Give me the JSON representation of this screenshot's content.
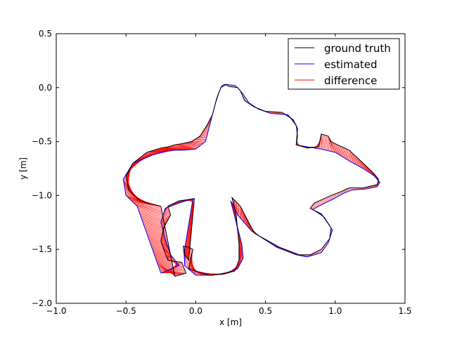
{
  "chart_data": {
    "type": "line",
    "title": "",
    "xlabel": "x [m]",
    "ylabel": "y [m]",
    "xlim": [
      -1.0,
      1.5
    ],
    "ylim": [
      -2.0,
      0.5
    ],
    "xticks": [
      -1.0,
      -0.5,
      0.0,
      0.5,
      1.0,
      1.5
    ],
    "yticks": [
      -2.0,
      -1.5,
      -1.0,
      -0.5,
      0.0,
      0.5
    ],
    "xtick_labels": [
      "−1.0",
      "−0.5",
      "0.0",
      "0.5",
      "1.0",
      "1.5"
    ],
    "ytick_labels": [
      "−2.0",
      "−1.5",
      "−1.0",
      "−0.5",
      "0.0",
      "0.5"
    ],
    "grid": false,
    "legend_position": "top-right",
    "series": [
      {
        "name": "ground truth",
        "color": "#000000",
        "x": [
          0.3,
          0.32,
          0.35,
          0.42,
          0.5,
          0.62,
          0.7,
          0.73,
          0.72,
          0.8,
          0.88,
          0.9,
          0.95,
          0.97,
          1.0,
          1.1,
          1.2,
          1.28,
          1.31,
          1.3,
          1.2,
          1.1,
          1.05,
          0.97,
          0.85,
          0.82,
          0.9,
          0.97,
          0.96,
          0.9,
          0.82,
          0.74,
          0.6,
          0.42,
          0.32,
          0.26,
          0.29,
          0.31,
          0.31,
          0.28,
          0.2,
          0.1,
          0.0,
          -0.05,
          -0.03,
          -0.02,
          -0.05,
          -0.09,
          -0.08,
          -0.05,
          -0.01,
          -0.12,
          -0.2,
          -0.18,
          -0.23,
          -0.25,
          -0.23,
          -0.2,
          -0.1,
          -0.07,
          -0.15,
          -0.25,
          -0.4,
          -0.48,
          -0.5,
          -0.45,
          -0.35,
          -0.25,
          -0.2,
          -0.15,
          -0.1,
          -0.03,
          0.03,
          0.08,
          0.1,
          0.12,
          0.13,
          0.14,
          0.16,
          0.18,
          0.19,
          0.21,
          0.24,
          0.3
        ],
        "y": [
          0.0,
          -0.03,
          -0.12,
          -0.18,
          -0.22,
          -0.23,
          -0.3,
          -0.38,
          -0.53,
          -0.56,
          -0.55,
          -0.43,
          -0.45,
          -0.5,
          -0.52,
          -0.58,
          -0.7,
          -0.8,
          -0.85,
          -0.9,
          -0.93,
          -0.93,
          -0.96,
          -1.0,
          -1.07,
          -1.12,
          -1.17,
          -1.3,
          -1.4,
          -1.5,
          -1.55,
          -1.55,
          -1.48,
          -1.35,
          -1.1,
          -1.02,
          -1.18,
          -1.45,
          -1.6,
          -1.7,
          -1.73,
          -1.74,
          -1.7,
          -1.68,
          -1.55,
          -1.5,
          -1.48,
          -1.47,
          -1.55,
          -1.6,
          -1.03,
          -1.05,
          -1.1,
          -1.18,
          -1.3,
          -1.42,
          -1.5,
          -1.6,
          -1.62,
          -1.72,
          -1.75,
          -1.1,
          -1.05,
          -0.95,
          -0.82,
          -0.7,
          -0.6,
          -0.56,
          -0.55,
          -0.53,
          -0.52,
          -0.5,
          -0.45,
          -0.35,
          -0.3,
          -0.25,
          -0.2,
          -0.15,
          -0.07,
          0.0,
          0.02,
          0.03,
          0.01,
          0.0
        ]
      },
      {
        "name": "estimated",
        "color": "#0000ff",
        "x": [
          0.3,
          0.34,
          0.38,
          0.45,
          0.54,
          0.66,
          0.72,
          0.73,
          0.72,
          0.8,
          0.9,
          1.0,
          1.1,
          1.2,
          1.28,
          1.32,
          1.3,
          1.22,
          1.12,
          1.06,
          0.99,
          0.88,
          0.84,
          0.92,
          0.98,
          0.95,
          0.9,
          0.8,
          0.72,
          0.58,
          0.4,
          0.3,
          0.25,
          0.28,
          0.33,
          0.34,
          0.3,
          0.22,
          0.12,
          0.0,
          -0.08,
          -0.08,
          -0.02,
          -0.12,
          -0.22,
          -0.25,
          -0.22,
          -0.18,
          -0.12,
          -0.25,
          -0.42,
          -0.5,
          -0.52,
          -0.45,
          -0.3,
          -0.2,
          -0.15,
          -0.08,
          0.0,
          0.07,
          0.09,
          0.11,
          0.13,
          0.15,
          0.18,
          0.22,
          0.28,
          0.3
        ],
        "y": [
          0.0,
          -0.06,
          -0.14,
          -0.2,
          -0.24,
          -0.25,
          -0.35,
          -0.45,
          -0.53,
          -0.55,
          -0.57,
          -0.6,
          -0.68,
          -0.75,
          -0.82,
          -0.88,
          -0.92,
          -0.94,
          -0.95,
          -0.98,
          -1.03,
          -1.1,
          -1.13,
          -1.2,
          -1.32,
          -1.44,
          -1.53,
          -1.57,
          -1.55,
          -1.48,
          -1.33,
          -1.18,
          -1.05,
          -1.2,
          -1.45,
          -1.58,
          -1.68,
          -1.72,
          -1.74,
          -1.74,
          -1.65,
          -1.5,
          -1.03,
          -1.07,
          -1.12,
          -1.25,
          -1.4,
          -1.55,
          -1.65,
          -1.72,
          -1.1,
          -1.0,
          -0.85,
          -0.7,
          -0.62,
          -0.59,
          -0.58,
          -0.58,
          -0.57,
          -0.5,
          -0.4,
          -0.3,
          -0.2,
          -0.1,
          0.0,
          0.03,
          0.02,
          0.0
        ]
      },
      {
        "name": "difference",
        "color": "#ff0000"
      }
    ]
  }
}
